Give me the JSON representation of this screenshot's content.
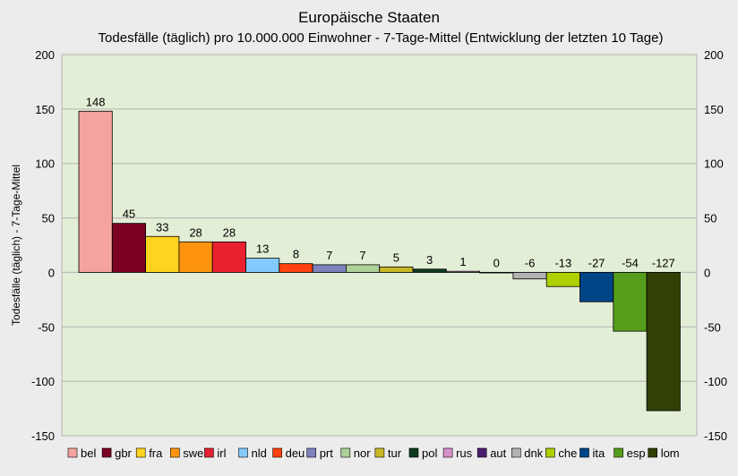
{
  "chart_data": {
    "type": "bar",
    "title": "Europäische Staaten",
    "subtitle": "Todesfälle (täglich) pro 10.000.000 Einwohner - 7-Tage-Mittel (Entwicklung der letzten 10 Tage)",
    "xlabel": "",
    "ylabel": "Todesfälle (täglich) - 7-Tage-Mittel",
    "ylim": [
      -150,
      200
    ],
    "yticks": [
      -150,
      -100,
      -50,
      0,
      50,
      100,
      150,
      200
    ],
    "grid": true,
    "legend_position": "bottom",
    "plot_background": "#e2eed6",
    "categories": [
      "bel",
      "gbr",
      "fra",
      "swe",
      "irl",
      "nld",
      "deu",
      "prt",
      "nor",
      "tur",
      "pol",
      "rus",
      "aut",
      "dnk",
      "che",
      "ita",
      "esp",
      "lom"
    ],
    "values": [
      148,
      45,
      33,
      28,
      28,
      13,
      8,
      7,
      7,
      5,
      3,
      1,
      0,
      -6,
      -13,
      -27,
      -54,
      -127
    ],
    "colors": [
      "#f4a3a0",
      "#7b0022",
      "#ffd320",
      "#ff950e",
      "#e82230",
      "#83caff",
      "#ff420e",
      "#7e82bd",
      "#aecf98",
      "#c9b824",
      "#0d3a1e",
      "#d690cb",
      "#4b1f6f",
      "#b3b3b3",
      "#aecf00",
      "#004586",
      "#579d1c",
      "#314004"
    ]
  }
}
